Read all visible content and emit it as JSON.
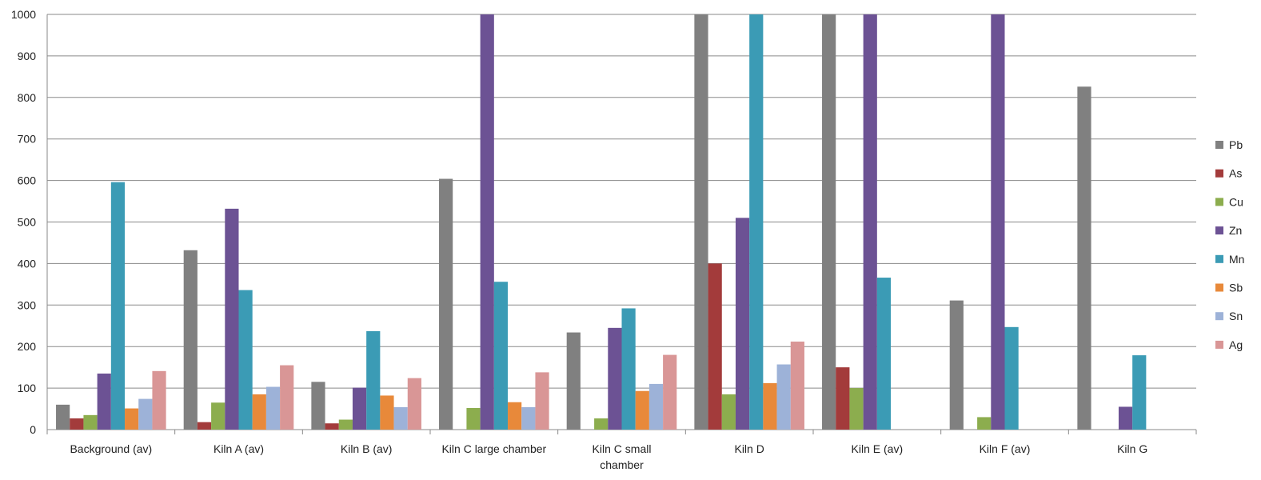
{
  "chart_data": {
    "type": "bar",
    "title": "",
    "xlabel": "",
    "ylabel": "",
    "ylim": [
      0,
      1000
    ],
    "yticks": [
      0,
      100,
      200,
      300,
      400,
      500,
      600,
      700,
      800,
      900,
      1000
    ],
    "grid": true,
    "legend_position": "right",
    "categories": [
      [
        "Background (av)"
      ],
      [
        "Kiln A (av)"
      ],
      [
        "Kiln B (av)"
      ],
      [
        "Kiln C large chamber"
      ],
      [
        "Kiln C small",
        "chamber"
      ],
      [
        "Kiln D"
      ],
      [
        "Kiln E (av)"
      ],
      [
        "Kiln F (av)"
      ],
      [
        "Kiln G"
      ]
    ],
    "series": [
      {
        "name": "Pb",
        "color": "#808080",
        "values": [
          60,
          432,
          115,
          604,
          234,
          1000,
          1000,
          311,
          826
        ]
      },
      {
        "name": "As",
        "color": "#A33B3B",
        "values": [
          27,
          18,
          15,
          0,
          0,
          400,
          150,
          0,
          0
        ]
      },
      {
        "name": "Cu",
        "color": "#8CAD4E",
        "values": [
          35,
          65,
          24,
          52,
          27,
          85,
          100,
          30,
          0
        ]
      },
      {
        "name": "Zn",
        "color": "#6C5294",
        "values": [
          135,
          532,
          101,
          1000,
          245,
          510,
          1000,
          1000,
          55
        ]
      },
      {
        "name": "Mn",
        "color": "#3B9BB5",
        "values": [
          596,
          336,
          237,
          356,
          292,
          1000,
          366,
          247,
          179
        ]
      },
      {
        "name": "Sb",
        "color": "#E8893A",
        "values": [
          51,
          85,
          82,
          66,
          93,
          112,
          0,
          0,
          0
        ]
      },
      {
        "name": "Sn",
        "color": "#9DB2D8",
        "values": [
          74,
          103,
          54,
          54,
          110,
          157,
          0,
          0,
          0
        ]
      },
      {
        "name": "Ag",
        "color": "#D99696",
        "values": [
          141,
          155,
          124,
          138,
          180,
          212,
          0,
          0,
          0
        ]
      }
    ]
  }
}
